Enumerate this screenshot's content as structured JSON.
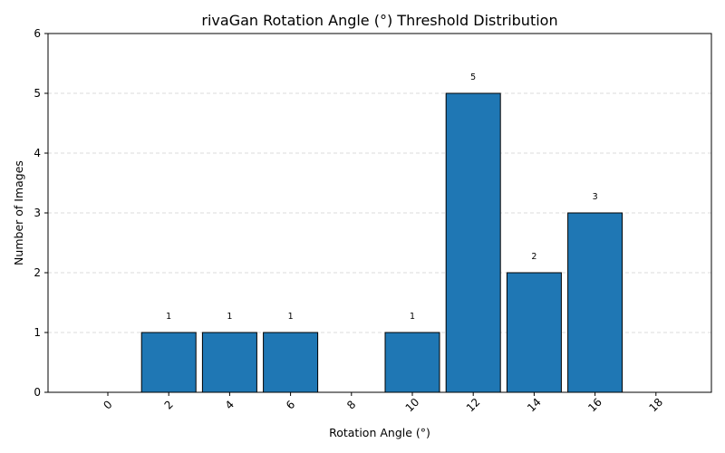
{
  "chart_data": {
    "type": "bar",
    "title": "rivaGan Rotation Angle (°) Threshold Distribution",
    "xlabel": "Rotation Angle (°)",
    "ylabel": "Number of Images",
    "categories": [
      "0",
      "2",
      "4",
      "6",
      "8",
      "10",
      "12",
      "14",
      "16",
      "18"
    ],
    "values": [
      0,
      1,
      1,
      1,
      0,
      1,
      5,
      2,
      3,
      0
    ],
    "data_labels": [
      "",
      "1",
      "1",
      "1",
      "",
      "1",
      "5",
      "2",
      "3",
      ""
    ],
    "ylim": [
      0,
      6
    ],
    "yticks": [
      "0",
      "1",
      "2",
      "3",
      "4",
      "5",
      "6"
    ],
    "grid": "y-dashed",
    "bar_color": "#1f77b4",
    "edge_color": "#000000"
  }
}
